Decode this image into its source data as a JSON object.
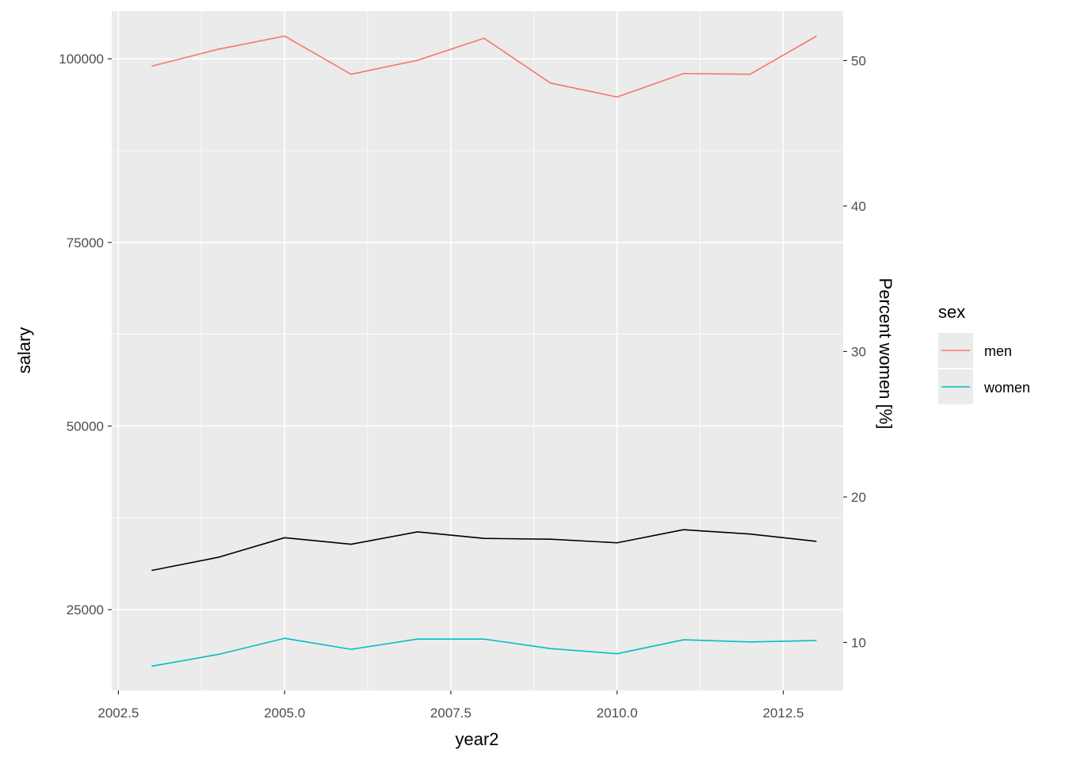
{
  "chart_data": {
    "type": "line",
    "xlabel": "year2",
    "ylabel": "salary",
    "y2label": "Percent women [%]",
    "xlim": [
      2002.4,
      2013.4
    ],
    "ylim": [
      14000,
      106500
    ],
    "y2lim": [
      6.7,
      53.4
    ],
    "x_ticks": [
      2002.5,
      2005.0,
      2007.5,
      2010.0,
      2012.5
    ],
    "x_tick_labels": [
      "2002.5",
      "2005.0",
      "2007.5",
      "2010.0",
      "2012.5"
    ],
    "y_ticks": [
      25000,
      50000,
      75000,
      100000
    ],
    "y_tick_labels": [
      "25000",
      "50000",
      "75000",
      "100000"
    ],
    "y2_ticks": [
      10,
      20,
      30,
      40,
      50
    ],
    "y2_tick_labels": [
      "10",
      "20",
      "30",
      "40",
      "50"
    ],
    "grid": true,
    "legend": {
      "title": "sex",
      "position": "right"
    },
    "x": [
      2003,
      2004,
      2005,
      2006,
      2007,
      2008,
      2009,
      2010,
      2011,
      2012,
      2013
    ],
    "series": [
      {
        "name": "men",
        "axis": "left",
        "color": "#F8766D",
        "values": [
          99000,
          101300,
          103100,
          97900,
          99800,
          102800,
          96700,
          94800,
          98000,
          97900,
          103100
        ]
      },
      {
        "name": "women",
        "axis": "left",
        "color": "#00BFC4",
        "values": [
          17300,
          18900,
          21100,
          19600,
          21000,
          21000,
          19700,
          19000,
          20900,
          20600,
          20800
        ]
      },
      {
        "axis": "right",
        "color": "#000000",
        "values": [
          14.95,
          15.85,
          17.2,
          16.75,
          17.6,
          17.15,
          17.1,
          16.85,
          17.75,
          17.45,
          16.95
        ]
      }
    ]
  }
}
